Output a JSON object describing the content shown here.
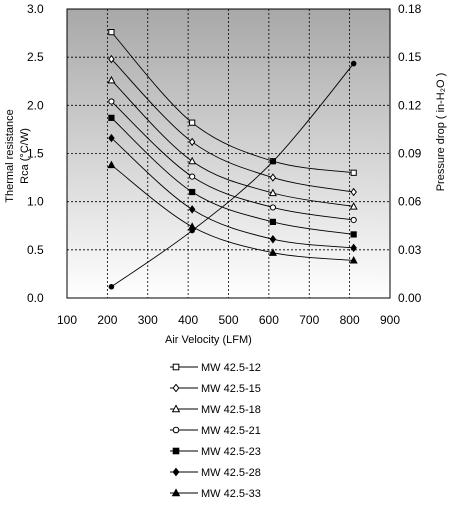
{
  "chart_data": {
    "type": "line",
    "xlabel": "Air Velocity (LFM)",
    "ylabel_left_line1": "Thermal resistance",
    "ylabel_left_line2": "Rca (°C/W)",
    "ylabel_right": "Pressure drop  ( in-H₂O )",
    "xlim": [
      100,
      900
    ],
    "ylim_left": [
      0,
      3
    ],
    "ylim_right": [
      0,
      0.18
    ],
    "x_ticks": [
      "100",
      "200",
      "300",
      "400",
      "500",
      "600",
      "700",
      "800",
      "900"
    ],
    "y_left_ticks": [
      "0.0",
      "0.5",
      "1.0",
      "1.5",
      "2.0",
      "2.5",
      "3.0"
    ],
    "y_right_ticks": [
      "0.00",
      "0.03",
      "0.06",
      "0.09",
      "0.12",
      "0.15",
      "0.18"
    ],
    "grid": true,
    "colors": {
      "background_top": "#a8a8a8",
      "background_bottom": "#ffffff",
      "line": "#000000"
    },
    "series": [
      {
        "name": "MW 42.5-12",
        "marker": "square-open",
        "x": [
          210,
          410,
          610,
          810
        ],
        "y": [
          2.76,
          1.82,
          1.42,
          1.3
        ]
      },
      {
        "name": "MW 42.5-15",
        "marker": "diamond-open",
        "x": [
          210,
          410,
          610,
          810
        ],
        "y": [
          2.48,
          1.62,
          1.25,
          1.1
        ]
      },
      {
        "name": "MW 42.5-18",
        "marker": "triangle-open",
        "x": [
          210,
          410,
          610,
          810
        ],
        "y": [
          2.26,
          1.42,
          1.09,
          0.95
        ]
      },
      {
        "name": "MW 42.5-21",
        "marker": "circle-open",
        "x": [
          210,
          410,
          610,
          810
        ],
        "y": [
          2.04,
          1.26,
          0.94,
          0.81
        ]
      },
      {
        "name": "MW 42.5-23",
        "marker": "square-filled",
        "x": [
          210,
          410,
          610,
          810
        ],
        "y": [
          1.87,
          1.1,
          0.79,
          0.66
        ]
      },
      {
        "name": "MW 42.5-28",
        "marker": "diamond-filled",
        "x": [
          210,
          410,
          610,
          810
        ],
        "y": [
          1.66,
          0.92,
          0.61,
          0.52
        ]
      },
      {
        "name": "MW 42.5-33",
        "marker": "triangle-filled",
        "x": [
          210,
          410,
          610,
          810
        ],
        "y": [
          1.38,
          0.74,
          0.47,
          0.39
        ]
      }
    ],
    "pressure_series": {
      "marker": "circle-filled",
      "axis": "right",
      "x": [
        210,
        410,
        610,
        810
      ],
      "y": [
        0.007,
        0.042,
        0.085,
        0.146
      ]
    }
  }
}
